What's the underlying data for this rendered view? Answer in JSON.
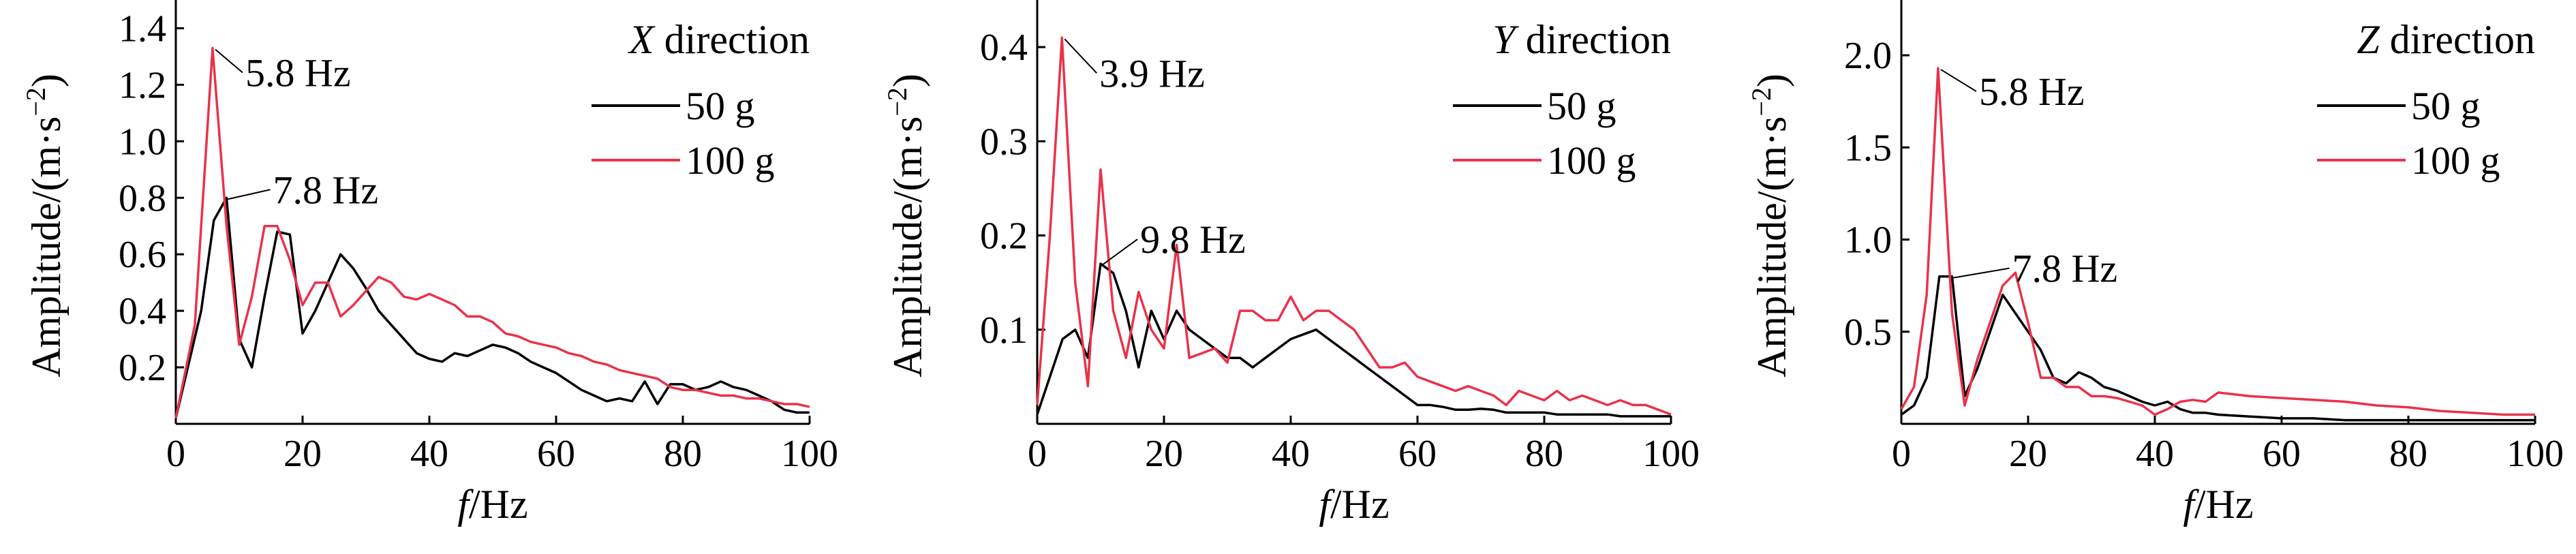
{
  "chart_data": [
    {
      "type": "line",
      "direction_var": "X",
      "direction_word": " direction",
      "xlabel_var": "f",
      "xlabel_unit": "/Hz",
      "ylabel_base": "Amplitude/(m·s",
      "ylabel_sup": "−2",
      "ylabel_close": ")",
      "xlim": [
        0,
        100
      ],
      "ylim": [
        0,
        1.5
      ],
      "xticks": [
        0,
        20,
        40,
        60,
        80,
        100
      ],
      "xtick_labels": [
        "0",
        "20",
        "40",
        "60",
        "80",
        "100"
      ],
      "yticks": [
        0.2,
        0.4,
        0.6,
        0.8,
        1.0,
        1.2,
        1.4
      ],
      "ytick_labels": [
        "0.2",
        "0.4",
        "0.6",
        "0.8",
        "1.0",
        "1.2",
        "1.4"
      ],
      "legend_placement": "top-right",
      "series": [
        {
          "name": "50 g",
          "color": "#000000",
          "x": [
            0,
            4,
            6,
            8,
            10,
            12,
            14,
            16,
            18,
            20,
            22,
            24,
            26,
            28,
            30,
            32,
            34,
            36,
            38,
            40,
            42,
            44,
            46,
            48,
            50,
            52,
            54,
            56,
            58,
            60,
            62,
            64,
            66,
            68,
            70,
            72,
            74,
            76,
            78,
            80,
            82,
            84,
            86,
            88,
            90,
            92,
            94,
            96,
            98,
            100
          ],
          "y": [
            0.02,
            0.4,
            0.72,
            0.8,
            0.3,
            0.2,
            0.45,
            0.68,
            0.67,
            0.32,
            0.4,
            0.5,
            0.6,
            0.55,
            0.48,
            0.4,
            0.35,
            0.3,
            0.25,
            0.23,
            0.22,
            0.25,
            0.24,
            0.26,
            0.28,
            0.27,
            0.25,
            0.22,
            0.2,
            0.18,
            0.15,
            0.12,
            0.1,
            0.08,
            0.09,
            0.08,
            0.15,
            0.07,
            0.14,
            0.14,
            0.12,
            0.13,
            0.15,
            0.13,
            0.12,
            0.1,
            0.08,
            0.05,
            0.04,
            0.04
          ]
        },
        {
          "name": "100 g",
          "color": "#e8334a",
          "x": [
            0,
            3,
            5.8,
            8,
            10,
            12,
            14,
            16,
            18,
            20,
            22,
            24,
            26,
            28,
            30,
            32,
            34,
            36,
            38,
            40,
            42,
            44,
            46,
            48,
            50,
            52,
            54,
            56,
            58,
            60,
            62,
            64,
            66,
            68,
            70,
            72,
            74,
            76,
            78,
            80,
            82,
            84,
            86,
            88,
            90,
            92,
            94,
            96,
            98,
            100
          ],
          "y": [
            0.02,
            0.35,
            1.33,
            0.7,
            0.28,
            0.45,
            0.7,
            0.7,
            0.58,
            0.42,
            0.5,
            0.5,
            0.38,
            0.42,
            0.47,
            0.52,
            0.5,
            0.45,
            0.44,
            0.46,
            0.44,
            0.42,
            0.38,
            0.38,
            0.36,
            0.32,
            0.31,
            0.29,
            0.28,
            0.27,
            0.25,
            0.24,
            0.22,
            0.21,
            0.19,
            0.18,
            0.17,
            0.16,
            0.13,
            0.12,
            0.12,
            0.11,
            0.1,
            0.1,
            0.09,
            0.09,
            0.08,
            0.07,
            0.07,
            0.06
          ]
        }
      ],
      "annotations": [
        {
          "text": "5.8 Hz",
          "x": 5.8,
          "y": 1.33
        },
        {
          "text": "7.8 Hz",
          "x": 7.8,
          "y": 0.8
        }
      ]
    },
    {
      "type": "line",
      "direction_var": "Y",
      "direction_word": " direction",
      "xlabel_var": "f",
      "xlabel_unit": "/Hz",
      "ylabel_base": "Amplitude/(m·s",
      "ylabel_sup": "−2",
      "ylabel_close": ")",
      "xlim": [
        0,
        100
      ],
      "ylim": [
        0,
        0.45
      ],
      "xticks": [
        0,
        20,
        40,
        60,
        80,
        100
      ],
      "xtick_labels": [
        "0",
        "20",
        "40",
        "60",
        "80",
        "100"
      ],
      "yticks": [
        0.1,
        0.2,
        0.3,
        0.4
      ],
      "ytick_labels": [
        "0.1",
        "0.2",
        "0.3",
        "0.4"
      ],
      "legend_placement": "top-right",
      "series": [
        {
          "name": "50 g",
          "color": "#000000",
          "x": [
            0,
            2,
            4,
            6,
            8,
            10,
            12,
            14,
            16,
            18,
            20,
            22,
            24,
            26,
            28,
            30,
            32,
            34,
            36,
            38,
            40,
            42,
            44,
            46,
            48,
            50,
            52,
            54,
            56,
            58,
            60,
            62,
            64,
            66,
            68,
            70,
            72,
            74,
            76,
            78,
            80,
            82,
            84,
            86,
            88,
            90,
            92,
            94,
            96,
            98,
            100
          ],
          "y": [
            0.01,
            0.05,
            0.09,
            0.1,
            0.07,
            0.17,
            0.16,
            0.12,
            0.06,
            0.12,
            0.09,
            0.12,
            0.1,
            0.09,
            0.08,
            0.07,
            0.07,
            0.06,
            0.07,
            0.08,
            0.09,
            0.095,
            0.1,
            0.09,
            0.08,
            0.07,
            0.06,
            0.05,
            0.04,
            0.03,
            0.02,
            0.02,
            0.018,
            0.015,
            0.015,
            0.016,
            0.015,
            0.012,
            0.012,
            0.012,
            0.012,
            0.01,
            0.01,
            0.01,
            0.01,
            0.01,
            0.008,
            0.008,
            0.008,
            0.008,
            0.008
          ]
        },
        {
          "name": "100 g",
          "color": "#e8334a",
          "x": [
            0,
            2,
            3.9,
            6,
            8,
            10,
            12,
            14,
            16,
            18,
            20,
            22,
            24,
            26,
            28,
            30,
            32,
            34,
            36,
            38,
            40,
            42,
            44,
            46,
            48,
            50,
            52,
            54,
            56,
            58,
            60,
            62,
            64,
            66,
            68,
            70,
            72,
            74,
            76,
            78,
            80,
            82,
            84,
            86,
            88,
            90,
            92,
            94,
            96,
            98,
            100
          ],
          "y": [
            0.02,
            0.2,
            0.41,
            0.15,
            0.04,
            0.27,
            0.12,
            0.07,
            0.14,
            0.1,
            0.08,
            0.19,
            0.07,
            0.075,
            0.08,
            0.065,
            0.12,
            0.12,
            0.11,
            0.11,
            0.135,
            0.11,
            0.12,
            0.12,
            0.11,
            0.1,
            0.08,
            0.06,
            0.06,
            0.065,
            0.05,
            0.045,
            0.04,
            0.035,
            0.04,
            0.035,
            0.03,
            0.02,
            0.035,
            0.03,
            0.025,
            0.035,
            0.025,
            0.03,
            0.025,
            0.02,
            0.025,
            0.02,
            0.02,
            0.015,
            0.01
          ]
        }
      ],
      "annotations": [
        {
          "text": "3.9 Hz",
          "x": 3.9,
          "y": 0.41
        },
        {
          "text": "9.8 Hz",
          "x": 9.8,
          "y": 0.17
        }
      ]
    },
    {
      "type": "line",
      "direction_var": "Z",
      "direction_word": " direction",
      "xlabel_var": "f",
      "xlabel_unit": "/Hz",
      "ylabel_base": "Amplitude/(m·s",
      "ylabel_sup": "−2",
      "ylabel_close": ")",
      "xlim": [
        0,
        100
      ],
      "ylim": [
        0,
        2.3
      ],
      "xticks": [
        0,
        20,
        40,
        60,
        80,
        100
      ],
      "xtick_labels": [
        "0",
        "20",
        "40",
        "60",
        "80",
        "100"
      ],
      "yticks": [
        0.5,
        1.0,
        1.5,
        2.0
      ],
      "ytick_labels": [
        "0.5",
        "1.0",
        "1.5",
        "2.0"
      ],
      "legend_placement": "top-right",
      "series": [
        {
          "name": "50 g",
          "color": "#000000",
          "x": [
            0,
            2,
            4,
            6,
            8,
            10,
            12,
            14,
            16,
            18,
            20,
            22,
            24,
            26,
            28,
            30,
            32,
            34,
            36,
            38,
            40,
            42,
            44,
            46,
            48,
            50,
            55,
            60,
            65,
            70,
            75,
            80,
            85,
            90,
            95,
            100
          ],
          "y": [
            0.05,
            0.1,
            0.25,
            0.8,
            0.8,
            0.15,
            0.3,
            0.5,
            0.7,
            0.6,
            0.5,
            0.4,
            0.25,
            0.22,
            0.28,
            0.25,
            0.2,
            0.18,
            0.15,
            0.12,
            0.1,
            0.12,
            0.08,
            0.06,
            0.06,
            0.05,
            0.04,
            0.03,
            0.03,
            0.02,
            0.02,
            0.02,
            0.02,
            0.02,
            0.02,
            0.02
          ]
        },
        {
          "name": "100 g",
          "color": "#e8334a",
          "x": [
            0,
            2,
            4,
            5.8,
            8,
            10,
            12,
            14,
            16,
            18,
            20,
            22,
            24,
            26,
            28,
            30,
            32,
            34,
            36,
            38,
            40,
            42,
            44,
            46,
            48,
            50,
            55,
            60,
            65,
            70,
            75,
            80,
            85,
            90,
            95,
            100
          ],
          "y": [
            0.08,
            0.2,
            0.7,
            1.93,
            0.6,
            0.1,
            0.35,
            0.55,
            0.75,
            0.82,
            0.55,
            0.25,
            0.25,
            0.2,
            0.2,
            0.15,
            0.15,
            0.14,
            0.12,
            0.1,
            0.05,
            0.08,
            0.12,
            0.13,
            0.12,
            0.17,
            0.15,
            0.14,
            0.13,
            0.12,
            0.1,
            0.09,
            0.07,
            0.06,
            0.05,
            0.05
          ]
        }
      ],
      "annotations": [
        {
          "text": "5.8 Hz",
          "x": 5.8,
          "y": 1.93
        },
        {
          "text": "7.8 Hz",
          "x": 7.8,
          "y": 0.8
        }
      ]
    }
  ]
}
